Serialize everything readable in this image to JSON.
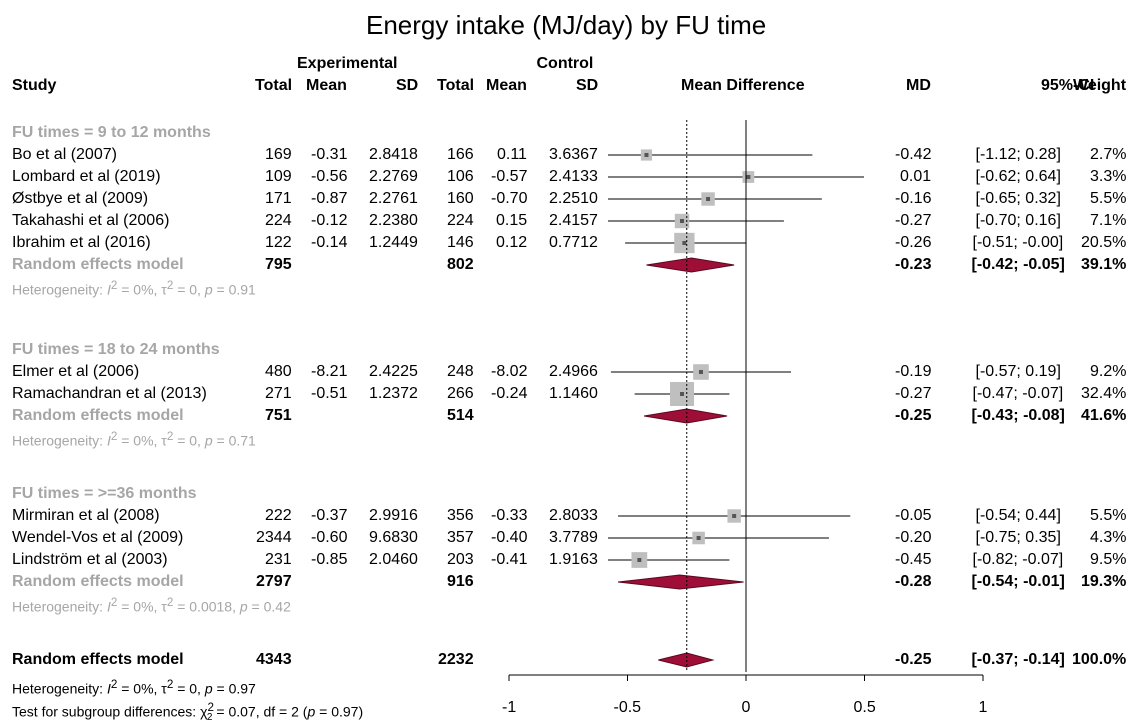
{
  "chart_data": {
    "type": "forest",
    "title": "Energy intake (MJ/day) by FU time",
    "headers": {
      "experimental": "Experimental",
      "control": "Control",
      "study": "Study",
      "total": "Total",
      "mean": "Mean",
      "sd": "SD",
      "mean_difference": "Mean Difference",
      "md": "MD",
      "ci": "95%-CI",
      "weight": "Weight"
    },
    "xlim": [
      -1,
      1
    ],
    "x_ticks": [
      "-1",
      "-0.5",
      "0",
      "0.5",
      "1"
    ],
    "x_tick_values": [
      -1,
      -0.5,
      0,
      0.5,
      1
    ],
    "reference_line": 0,
    "overall_line": -0.25,
    "subgroups": [
      {
        "label": "FU times = 9 to 12 months",
        "studies": [
          {
            "name": "Bo et al (2007)",
            "e_total": "169",
            "e_mean": "-0.31",
            "e_sd": "2.8418",
            "c_total": "166",
            "c_mean": "0.11",
            "c_sd": "3.6367",
            "md": -0.42,
            "lower": -1.12,
            "upper": 0.28,
            "weight": 2.7,
            "md_text": "-0.42",
            "ci_text": "[-1.12;  0.28]",
            "weight_text": "2.7%"
          },
          {
            "name": "Lombard et al (2019)",
            "e_total": "109",
            "e_mean": "-0.56",
            "e_sd": "2.2769",
            "c_total": "106",
            "c_mean": "-0.57",
            "c_sd": "2.4133",
            "md": 0.01,
            "lower": -0.62,
            "upper": 0.64,
            "weight": 3.3,
            "md_text": "0.01",
            "ci_text": "[-0.62;  0.64]",
            "weight_text": "3.3%"
          },
          {
            "name": "Østbye et al (2009)",
            "e_total": "171",
            "e_mean": "-0.87",
            "e_sd": "2.2761",
            "c_total": "160",
            "c_mean": "-0.70",
            "c_sd": "2.2510",
            "md": -0.16,
            "lower": -0.65,
            "upper": 0.32,
            "weight": 5.5,
            "md_text": "-0.16",
            "ci_text": "[-0.65;  0.32]",
            "weight_text": "5.5%"
          },
          {
            "name": "Takahashi et al (2006)",
            "e_total": "224",
            "e_mean": "-0.12",
            "e_sd": "2.2380",
            "c_total": "224",
            "c_mean": "0.15",
            "c_sd": "2.4157",
            "md": -0.27,
            "lower": -0.7,
            "upper": 0.16,
            "weight": 7.1,
            "md_text": "-0.27",
            "ci_text": "[-0.70;  0.16]",
            "weight_text": "7.1%"
          },
          {
            "name": "Ibrahim et al (2016)",
            "e_total": "122",
            "e_mean": "-0.14",
            "e_sd": "1.2449",
            "c_total": "146",
            "c_mean": "0.12",
            "c_sd": "0.7712",
            "md": -0.26,
            "lower": -0.51,
            "upper": -0.0,
            "weight": 20.5,
            "md_text": "-0.26",
            "ci_text": "[-0.51; -0.00]",
            "weight_text": "20.5%"
          }
        ],
        "pooled": {
          "label": "Random effects model",
          "e_total": "795",
          "c_total": "802",
          "md": -0.23,
          "lower": -0.42,
          "upper": -0.05,
          "md_text": "-0.23",
          "ci_text": "[-0.42; -0.05]",
          "weight_text": "39.1%"
        },
        "heterogeneity": {
          "prefix": "Heterogeneity: ",
          "i2": "I",
          "i2_value": " = 0%, ",
          "tau": "τ",
          "tau_value": " = 0, ",
          "p": "p",
          "p_value": " = 0.91"
        }
      },
      {
        "label": "FU times = 18 to 24 months",
        "studies": [
          {
            "name": "Elmer et al (2006)",
            "e_total": "480",
            "e_mean": "-8.21",
            "e_sd": "2.4225",
            "c_total": "248",
            "c_mean": "-8.02",
            "c_sd": "2.4966",
            "md": -0.19,
            "lower": -0.57,
            "upper": 0.19,
            "weight": 9.2,
            "md_text": "-0.19",
            "ci_text": "[-0.57;  0.19]",
            "weight_text": "9.2%"
          },
          {
            "name": "Ramachandran et al (2013)",
            "e_total": "271",
            "e_mean": "-0.51",
            "e_sd": "1.2372",
            "c_total": "266",
            "c_mean": "-0.24",
            "c_sd": "1.1460",
            "md": -0.27,
            "lower": -0.47,
            "upper": -0.07,
            "weight": 32.4,
            "md_text": "-0.27",
            "ci_text": "[-0.47; -0.07]",
            "weight_text": "32.4%"
          }
        ],
        "pooled": {
          "label": "Random effects model",
          "e_total": "751",
          "c_total": "514",
          "md": -0.25,
          "lower": -0.43,
          "upper": -0.08,
          "md_text": "-0.25",
          "ci_text": "[-0.43; -0.08]",
          "weight_text": "41.6%"
        },
        "heterogeneity": {
          "prefix": "Heterogeneity: ",
          "i2": "I",
          "i2_value": " = 0%, ",
          "tau": "τ",
          "tau_value": " = 0, ",
          "p": "p",
          "p_value": " = 0.71"
        }
      },
      {
        "label": "FU times = >=36 months",
        "studies": [
          {
            "name": "Mirmiran et al (2008)",
            "e_total": "222",
            "e_mean": "-0.37",
            "e_sd": "2.9916",
            "c_total": "356",
            "c_mean": "-0.33",
            "c_sd": "2.8033",
            "md": -0.05,
            "lower": -0.54,
            "upper": 0.44,
            "weight": 5.5,
            "md_text": "-0.05",
            "ci_text": "[-0.54;  0.44]",
            "weight_text": "5.5%"
          },
          {
            "name": "Wendel-Vos et al (2009)",
            "e_total": "2344",
            "e_mean": "-0.60",
            "e_sd": "9.6830",
            "c_total": "357",
            "c_mean": "-0.40",
            "c_sd": "3.7789",
            "md": -0.2,
            "lower": -0.75,
            "upper": 0.35,
            "weight": 4.3,
            "md_text": "-0.20",
            "ci_text": "[-0.75;  0.35]",
            "weight_text": "4.3%"
          },
          {
            "name": "Lindström et al (2003)",
            "e_total": "231",
            "e_mean": "-0.85",
            "e_sd": "2.0460",
            "c_total": "203",
            "c_mean": "-0.41",
            "c_sd": "1.9163",
            "md": -0.45,
            "lower": -0.82,
            "upper": -0.07,
            "weight": 9.5,
            "md_text": "-0.45",
            "ci_text": "[-0.82; -0.07]",
            "weight_text": "9.5%"
          }
        ],
        "pooled": {
          "label": "Random effects model",
          "e_total": "2797",
          "c_total": "916",
          "md": -0.28,
          "lower": -0.54,
          "upper": -0.01,
          "md_text": "-0.28",
          "ci_text": "[-0.54; -0.01]",
          "weight_text": "19.3%"
        },
        "heterogeneity": {
          "prefix": "Heterogeneity: ",
          "i2": "I",
          "i2_value": " = 0%, ",
          "tau": "τ",
          "tau_value": " = 0.0018, ",
          "p": "p",
          "p_value": " = 0.42"
        }
      }
    ],
    "overall": {
      "label": "Random effects model",
      "e_total": "4343",
      "c_total": "2232",
      "md": -0.25,
      "lower": -0.37,
      "upper": -0.14,
      "md_text": "-0.25",
      "ci_text": "[-0.37; -0.14]",
      "weight_text": "100.0%",
      "heterogeneity": {
        "prefix": "Heterogeneity: ",
        "i2": "I",
        "i2_value": " = 0%, ",
        "tau": "τ",
        "tau_value": " = 0, ",
        "p": "p",
        "p_value": " = 0.97"
      },
      "subgroup_test": {
        "prefix": "Test for subgroup differences: ",
        "chi": "χ",
        "chi_value": " = 0.07, df = 2 (",
        "p": "p",
        "p_value": " = 0.97)"
      }
    },
    "colors": {
      "diamond": "#9e0e36",
      "square": "#bfbfbf",
      "subgroup_text": "#a6a6a6",
      "line": "#000000"
    }
  }
}
